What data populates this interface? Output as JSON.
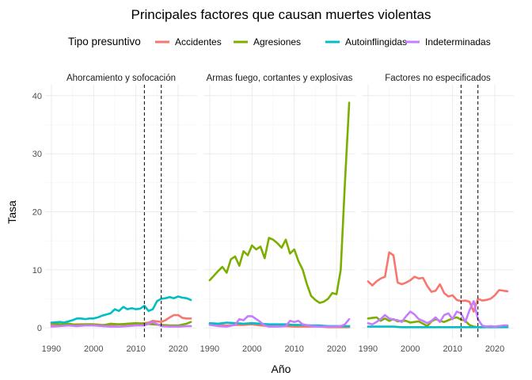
{
  "chart_data": {
    "type": "line",
    "title": "Principales factores que causan muertes violentas",
    "xlabel": "Año",
    "ylabel": "Tasa",
    "legend": {
      "title": "Tipo presuntivo",
      "placement": "top",
      "entries": [
        {
          "label": "Accidentes",
          "color": "#F8766D"
        },
        {
          "label": "Agresiones",
          "color": "#7CAE00"
        },
        {
          "label": "Autoinflingidas",
          "color": "#00BFC4"
        },
        {
          "label": "Indeterminadas",
          "color": "#C77CFF"
        }
      ]
    },
    "xlim": [
      1990,
      2023
    ],
    "ylim": [
      0,
      40
    ],
    "x_ticks": [
      "1990",
      "2000",
      "2010",
      "2020"
    ],
    "y_ticks": [
      "0",
      "10",
      "20",
      "30",
      "40"
    ],
    "grid": true,
    "reference_lines_x": [
      2012,
      2016
    ],
    "panels": [
      {
        "title": "Ahorcamiento y sofocación",
        "show_reference_lines": true,
        "series": [
          {
            "name": "Accidentes",
            "color": "#F8766D",
            "x": [
              1990,
              1992,
              1994,
              1996,
              1998,
              2000,
              2002,
              2004,
              2006,
              2008,
              2010,
              2012,
              2013,
              2014,
              2015,
              2016,
              2017,
              2018,
              2019,
              2020,
              2021,
              2022,
              2023
            ],
            "y": [
              0.5,
              0.6,
              0.5,
              0.6,
              0.6,
              0.6,
              0.5,
              0.5,
              0.6,
              0.6,
              0.7,
              0.8,
              0.9,
              1.2,
              1.1,
              1.0,
              1.3,
              1.8,
              2.2,
              2.2,
              1.7,
              1.6,
              1.6
            ]
          },
          {
            "name": "Agresiones",
            "color": "#7CAE00",
            "x": [
              1990,
              1992,
              1994,
              1996,
              1998,
              2000,
              2002,
              2004,
              2006,
              2008,
              2010,
              2012,
              2014,
              2016,
              2018,
              2020,
              2022,
              2023
            ],
            "y": [
              0.8,
              0.6,
              0.7,
              0.5,
              0.6,
              0.6,
              0.4,
              0.7,
              0.6,
              0.7,
              0.8,
              0.7,
              0.6,
              0.5,
              0.4,
              0.4,
              0.7,
              1.0
            ]
          },
          {
            "name": "Autoinflingidas",
            "color": "#00BFC4",
            "x": [
              1990,
              1992,
              1993,
              1994,
              1995,
              1996,
              1997,
              1998,
              1999,
              2000,
              2001,
              2002,
              2003,
              2004,
              2005,
              2006,
              2007,
              2008,
              2009,
              2010,
              2011,
              2012,
              2013,
              2014,
              2015,
              2016,
              2017,
              2018,
              2019,
              2020,
              2021,
              2022,
              2023
            ],
            "y": [
              0.9,
              1.0,
              0.9,
              1.1,
              1.3,
              1.6,
              1.6,
              1.5,
              1.6,
              1.6,
              1.8,
              2.1,
              2.3,
              2.5,
              3.2,
              2.9,
              3.6,
              3.2,
              3.4,
              3.2,
              3.3,
              3.8,
              2.9,
              3.2,
              4.6,
              5.0,
              5.1,
              5.3,
              5.1,
              5.4,
              5.2,
              5.1,
              4.8
            ]
          },
          {
            "name": "Indeterminadas",
            "color": "#C77CFF",
            "x": [
              1990,
              1992,
              1994,
              1996,
              1998,
              2000,
              2002,
              2004,
              2006,
              2008,
              2010,
              2012,
              2014,
              2016,
              2018,
              2020,
              2022,
              2023
            ],
            "y": [
              0.2,
              0.3,
              0.4,
              0.3,
              0.4,
              0.4,
              0.3,
              0.2,
              0.2,
              0.3,
              0.4,
              0.4,
              1.0,
              0.3,
              0.2,
              0.2,
              0.3,
              0.3
            ]
          }
        ]
      },
      {
        "title": "Armas fuego, cortantes y explosivas",
        "show_reference_lines": false,
        "series": [
          {
            "name": "Accidentes",
            "color": "#F8766D",
            "x": [
              1990,
              1992,
              1994,
              1996,
              1998,
              2000,
              2002,
              2004,
              2006,
              2008,
              2010,
              2012,
              2014,
              2016,
              2018,
              2020,
              2022,
              2023
            ],
            "y": [
              0.6,
              0.5,
              0.4,
              0.5,
              0.5,
              0.6,
              0.4,
              0.3,
              0.3,
              0.3,
              0.2,
              0.2,
              0.2,
              0.2,
              0.1,
              0.1,
              0.1,
              0.1
            ]
          },
          {
            "name": "Agresiones",
            "color": "#7CAE00",
            "x": [
              1990,
              1991,
              1992,
              1993,
              1994,
              1995,
              1996,
              1997,
              1998,
              1999,
              2000,
              2001,
              2002,
              2003,
              2004,
              2005,
              2006,
              2007,
              2008,
              2009,
              2010,
              2011,
              2012,
              2013,
              2014,
              2015,
              2016,
              2017,
              2018,
              2019,
              2020,
              2021,
              2022,
              2023
            ],
            "y": [
              8.2,
              9.0,
              9.8,
              10.5,
              9.5,
              11.8,
              12.3,
              10.7,
              13.2,
              12.5,
              14.2,
              13.5,
              14.0,
              12.0,
              15.5,
              15.2,
              14.6,
              13.8,
              15.2,
              12.8,
              13.5,
              11.5,
              10.0,
              7.5,
              5.5,
              4.8,
              4.3,
              4.5,
              5.0,
              6.0,
              5.8,
              10.0,
              25.0,
              38.8
            ]
          },
          {
            "name": "Autoinflingidas",
            "color": "#00BFC4",
            "x": [
              1990,
              1992,
              1994,
              1996,
              1998,
              2000,
              2002,
              2004,
              2006,
              2008,
              2010,
              2012,
              2014,
              2016,
              2018,
              2020,
              2022,
              2023
            ],
            "y": [
              0.8,
              0.7,
              0.9,
              0.8,
              0.7,
              0.8,
              0.7,
              0.6,
              0.6,
              0.6,
              0.5,
              0.5,
              0.4,
              0.4,
              0.3,
              0.3,
              0.3,
              0.3
            ]
          },
          {
            "name": "Indeterminadas",
            "color": "#C77CFF",
            "x": [
              1990,
              1992,
              1994,
              1996,
              1997,
              1998,
              1999,
              2000,
              2001,
              2002,
              2003,
              2004,
              2006,
              2008,
              2009,
              2010,
              2011,
              2012,
              2014,
              2016,
              2018,
              2020,
              2021,
              2022,
              2023
            ],
            "y": [
              0.5,
              0.3,
              0.2,
              0.5,
              1.5,
              1.3,
              2.0,
              2.0,
              1.5,
              1.0,
              0.4,
              0.2,
              0.2,
              0.3,
              1.2,
              1.0,
              1.2,
              0.6,
              0.3,
              0.2,
              0.2,
              0.2,
              0.3,
              0.6,
              1.5
            ]
          }
        ]
      },
      {
        "title": "Factores no especificados",
        "show_reference_lines": true,
        "series": [
          {
            "name": "Accidentes",
            "color": "#F8766D",
            "x": [
              1990,
              1991,
              1992,
              1993,
              1994,
              1995,
              1996,
              1997,
              1998,
              1999,
              2000,
              2001,
              2002,
              2003,
              2004,
              2005,
              2006,
              2007,
              2008,
              2009,
              2010,
              2011,
              2012,
              2013,
              2014,
              2015,
              2016,
              2017,
              2018,
              2019,
              2020,
              2021,
              2022,
              2023
            ],
            "y": [
              8.0,
              7.3,
              8.0,
              8.5,
              8.8,
              13.0,
              12.5,
              7.8,
              7.5,
              7.8,
              8.2,
              8.8,
              8.5,
              8.6,
              7.2,
              6.2,
              6.4,
              7.5,
              6.0,
              5.4,
              5.6,
              4.8,
              4.6,
              4.7,
              4.5,
              2.8,
              5.0,
              4.7,
              4.8,
              5.0,
              5.6,
              6.5,
              6.4,
              6.3
            ]
          },
          {
            "name": "Agresiones",
            "color": "#7CAE00",
            "x": [
              1990,
              1991,
              1992,
              1993,
              1994,
              1995,
              1996,
              1997,
              1998,
              1999,
              2000,
              2001,
              2002,
              2003,
              2004,
              2005,
              2006,
              2007,
              2008,
              2009,
              2010,
              2011,
              2012,
              2013,
              2014,
              2015,
              2016,
              2017,
              2018,
              2019,
              2020,
              2021,
              2022,
              2023
            ],
            "y": [
              1.6,
              1.7,
              1.8,
              1.2,
              1.6,
              1.2,
              1.5,
              1.1,
              1.2,
              1.2,
              0.9,
              1.0,
              1.1,
              0.7,
              0.3,
              1.1,
              1.5,
              1.2,
              1.0,
              1.3,
              1.6,
              1.8,
              1.4,
              1.2,
              0.5,
              0.2,
              0.1,
              0.1,
              0.2,
              0.2,
              0.2,
              0.3,
              0.2,
              0.3
            ]
          },
          {
            "name": "Autoinflingidas",
            "color": "#00BFC4",
            "x": [
              1990,
              1992,
              1994,
              1996,
              1998,
              2000,
              2002,
              2004,
              2006,
              2008,
              2010,
              2012,
              2014,
              2016,
              2018,
              2020,
              2022,
              2023
            ],
            "y": [
              0.2,
              0.2,
              0.2,
              0.2,
              0.1,
              0.1,
              0.1,
              0.1,
              0.1,
              0.1,
              0.1,
              0.1,
              0.1,
              0.1,
              0.1,
              0.1,
              0.1,
              0.1
            ]
          },
          {
            "name": "Indeterminadas",
            "color": "#C77CFF",
            "x": [
              1990,
              1991,
              1992,
              1993,
              1994,
              1995,
              1996,
              1997,
              1998,
              1999,
              2000,
              2001,
              2002,
              2003,
              2004,
              2005,
              2006,
              2007,
              2008,
              2009,
              2010,
              2011,
              2012,
              2013,
              2014,
              2015,
              2016,
              2017,
              2018,
              2019,
              2020,
              2021,
              2022,
              2023
            ],
            "y": [
              0.8,
              0.6,
              1.0,
              1.5,
              2.2,
              1.6,
              1.4,
              1.3,
              1.0,
              2.0,
              2.8,
              2.3,
              1.5,
              1.2,
              0.8,
              1.2,
              1.8,
              1.0,
              2.2,
              2.5,
              1.5,
              2.8,
              2.5,
              1.0,
              3.0,
              4.6,
              1.5,
              0.4,
              0.2,
              0.3,
              0.2,
              0.3,
              0.4,
              0.4
            ]
          }
        ]
      }
    ]
  }
}
